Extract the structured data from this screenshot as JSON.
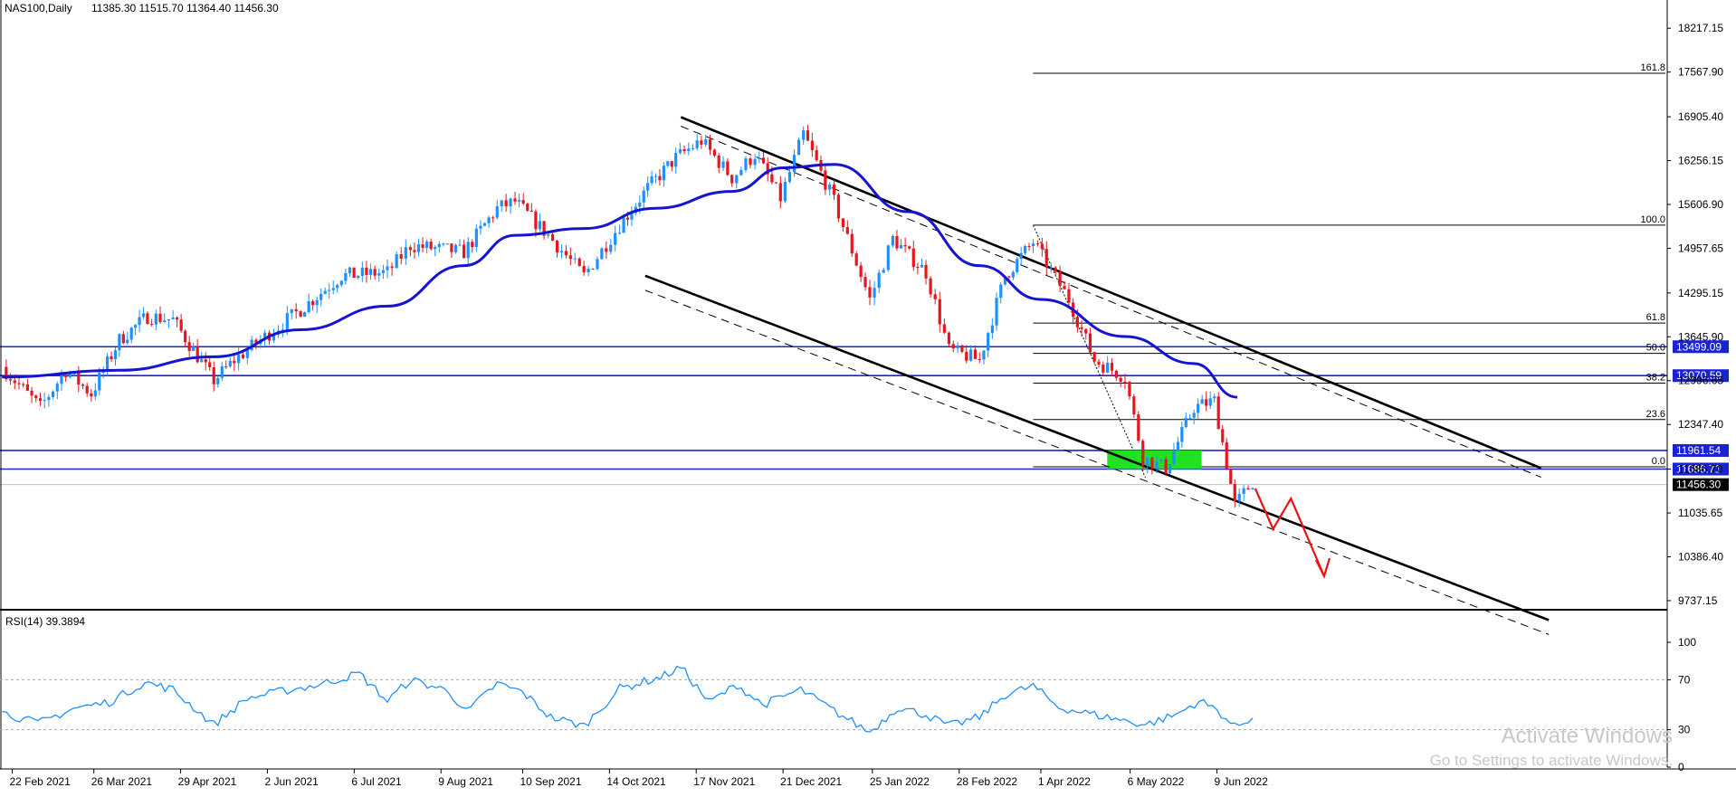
{
  "header": {
    "symbol": "NAS100,Daily",
    "ohlc": "11385.30 11515.70 11364.40 11456.30"
  },
  "watermark": {
    "title": "Activate Windows",
    "subtitle": "Go to Settings to activate Windows."
  },
  "chart_data": [
    {
      "type": "candlestick",
      "symbol": "NAS100",
      "timeframe": "Daily",
      "title": "NAS100,Daily",
      "ohlc_readout": "11385.30 11515.70 11364.40 11456.30",
      "ylim": [
        9450,
        18400
      ],
      "price_ticks": [
        18217.15,
        17567.9,
        16905.4,
        16256.15,
        15606.9,
        14957.65,
        14295.15,
        13645.9,
        12996.65,
        12347.4,
        11686.7,
        11035.65,
        10386.4,
        9737.15
      ],
      "price_tick_labels": [
        "18217.15",
        "17567.90",
        "16905.40",
        "16256.15",
        "15606.90",
        "14957.65",
        "14295.15",
        "13645.90",
        "12996.65",
        "12347.40",
        "11686.70",
        "11035.65",
        "10386.40",
        "9737.15"
      ],
      "x_tick_labels": [
        "22 Feb 2021",
        "26 Mar 2021",
        "29 Apr 2021",
        "2 Jun 2021",
        "6 Jul 2021",
        "9 Aug 2021",
        "10 Sep 2021",
        "14 Oct 2021",
        "17 Nov 2021",
        "21 Dec 2021",
        "25 Jan 2022",
        "28 Feb 2022",
        "1 Apr 2022",
        "6 May 2022",
        "9 Jun 2022"
      ],
      "last_price": 11456.3,
      "last_price_label": "11456.30",
      "price_path": [
        {
          "date": "2021-02-18",
          "close": 13200
        },
        {
          "date": "2021-03-05",
          "close": 12600
        },
        {
          "date": "2021-03-15",
          "close": 13150
        },
        {
          "date": "2021-03-25",
          "close": 12800
        },
        {
          "date": "2021-04-05",
          "close": 13600
        },
        {
          "date": "2021-04-16",
          "close": 13950
        },
        {
          "date": "2021-04-26",
          "close": 13900
        },
        {
          "date": "2021-05-12",
          "close": 13000
        },
        {
          "date": "2021-05-20",
          "close": 13300
        },
        {
          "date": "2021-06-01",
          "close": 13650
        },
        {
          "date": "2021-06-15",
          "close": 14050
        },
        {
          "date": "2021-07-01",
          "close": 14550
        },
        {
          "date": "2021-07-19",
          "close": 14600
        },
        {
          "date": "2021-07-28",
          "close": 15000
        },
        {
          "date": "2021-08-18",
          "close": 14900
        },
        {
          "date": "2021-08-31",
          "close": 15550
        },
        {
          "date": "2021-09-07",
          "close": 15650
        },
        {
          "date": "2021-09-20",
          "close": 15150
        },
        {
          "date": "2021-10-04",
          "close": 14550
        },
        {
          "date": "2021-10-18",
          "close": 15300
        },
        {
          "date": "2021-10-29",
          "close": 15850
        },
        {
          "date": "2021-11-09",
          "close": 16300
        },
        {
          "date": "2021-11-19",
          "close": 16550
        },
        {
          "date": "2021-12-01",
          "close": 16000
        },
        {
          "date": "2021-12-10",
          "close": 16350
        },
        {
          "date": "2021-12-20",
          "close": 15700
        },
        {
          "date": "2021-12-29",
          "close": 16650
        },
        {
          "date": "2022-01-10",
          "close": 15650
        },
        {
          "date": "2022-01-24",
          "close": 14200
        },
        {
          "date": "2022-02-02",
          "close": 15100
        },
        {
          "date": "2022-02-15",
          "close": 14600
        },
        {
          "date": "2022-02-24",
          "close": 13450
        },
        {
          "date": "2022-03-08",
          "close": 13300
        },
        {
          "date": "2022-03-18",
          "close": 14550
        },
        {
          "date": "2022-03-29",
          "close": 15050
        },
        {
          "date": "2022-04-12",
          "close": 14200
        },
        {
          "date": "2022-04-22",
          "close": 13300
        },
        {
          "date": "2022-05-04",
          "close": 13050
        },
        {
          "date": "2022-05-11",
          "close": 11850
        },
        {
          "date": "2022-05-20",
          "close": 11700
        },
        {
          "date": "2022-05-31",
          "close": 12600
        },
        {
          "date": "2022-06-08",
          "close": 12700
        },
        {
          "date": "2022-06-16",
          "close": 11150
        },
        {
          "date": "2022-06-23",
          "close": 11500
        }
      ],
      "moving_average": [
        {
          "date": "2021-02-18",
          "value": 13050
        },
        {
          "date": "2021-04-05",
          "value": 13150
        },
        {
          "date": "2021-05-12",
          "value": 13350
        },
        {
          "date": "2021-06-15",
          "value": 13750
        },
        {
          "date": "2021-07-19",
          "value": 14100
        },
        {
          "date": "2021-08-18",
          "value": 14700
        },
        {
          "date": "2021-09-07",
          "value": 15150
        },
        {
          "date": "2021-10-04",
          "value": 15250
        },
        {
          "date": "2021-11-01",
          "value": 15550
        },
        {
          "date": "2021-12-01",
          "value": 15800
        },
        {
          "date": "2021-12-21",
          "value": 16150
        },
        {
          "date": "2022-01-10",
          "value": 16200
        },
        {
          "date": "2022-02-08",
          "value": 15500
        },
        {
          "date": "2022-03-08",
          "value": 14700
        },
        {
          "date": "2022-04-01",
          "value": 14200
        },
        {
          "date": "2022-05-04",
          "value": 13650
        },
        {
          "date": "2022-05-31",
          "value": 13250
        },
        {
          "date": "2022-06-17",
          "value": 12750
        }
      ],
      "horizontal_levels": [
        {
          "price": 13499.09,
          "label": "13499.09"
        },
        {
          "price": 13070.59,
          "label": "13070.59"
        },
        {
          "price": 11961.54,
          "label": "11961.54"
        },
        {
          "price": 11686.71,
          "label": "11686.71"
        }
      ],
      "fibonacci": {
        "start_date": "2022-03-29",
        "end_date": "2022-05-12",
        "levels": [
          {
            "ratio": "161.8",
            "price": 17550
          },
          {
            "ratio": "100.0",
            "price": 15300
          },
          {
            "ratio": "61.8",
            "price": 13850
          },
          {
            "ratio": "50.0",
            "price": 13400
          },
          {
            "ratio": "38.2",
            "price": 12960
          },
          {
            "ratio": "23.6",
            "price": 12420
          },
          {
            "ratio": "0.0",
            "price": 11720
          }
        ]
      },
      "channel": {
        "upper": [
          {
            "date": "2021-11-11",
            "price": 16900
          },
          {
            "date": "2022-10-14",
            "price": 11700
          }
        ],
        "lower": [
          {
            "date": "2021-10-28",
            "price": 14550
          },
          {
            "date": "2022-10-17",
            "price": 9450
          }
        ]
      },
      "demand_zone": {
        "from": "2022-04-27",
        "to": "2022-06-03",
        "top": 11961.54,
        "bottom": 11686.71
      },
      "projection": [
        {
          "date": "2022-06-24",
          "price": 11400
        },
        {
          "date": "2022-07-01",
          "price": 10800
        },
        {
          "date": "2022-07-08",
          "price": 11250
        },
        {
          "date": "2022-07-21",
          "price": 10100
        }
      ]
    },
    {
      "type": "line",
      "title": "RSI(14) 39.3894",
      "ylim": [
        0,
        100
      ],
      "y_ticks": [
        0,
        30,
        70,
        100
      ],
      "guide_levels": [
        30,
        70
      ],
      "series": [
        {
          "values": [
            {
              "date": "2021-02-18",
              "value": 44
            },
            {
              "date": "2021-03-04",
              "value": 35
            },
            {
              "date": "2021-03-18",
              "value": 47
            },
            {
              "date": "2021-04-01",
              "value": 52
            },
            {
              "date": "2021-04-15",
              "value": 68
            },
            {
              "date": "2021-04-26",
              "value": 62
            },
            {
              "date": "2021-05-12",
              "value": 34
            },
            {
              "date": "2021-05-25",
              "value": 55
            },
            {
              "date": "2021-06-08",
              "value": 61
            },
            {
              "date": "2021-06-22",
              "value": 66
            },
            {
              "date": "2021-07-08",
              "value": 75
            },
            {
              "date": "2021-07-19",
              "value": 53
            },
            {
              "date": "2021-07-28",
              "value": 70
            },
            {
              "date": "2021-08-12",
              "value": 61
            },
            {
              "date": "2021-08-19",
              "value": 44
            },
            {
              "date": "2021-08-31",
              "value": 67
            },
            {
              "date": "2021-09-10",
              "value": 60
            },
            {
              "date": "2021-09-21",
              "value": 40
            },
            {
              "date": "2021-10-04",
              "value": 33
            },
            {
              "date": "2021-10-18",
              "value": 63
            },
            {
              "date": "2021-11-03",
              "value": 72
            },
            {
              "date": "2021-11-11",
              "value": 80
            },
            {
              "date": "2021-11-22",
              "value": 52
            },
            {
              "date": "2021-12-03",
              "value": 66
            },
            {
              "date": "2021-12-13",
              "value": 50
            },
            {
              "date": "2021-12-28",
              "value": 62
            },
            {
              "date": "2022-01-10",
              "value": 45
            },
            {
              "date": "2022-01-24",
              "value": 28
            },
            {
              "date": "2022-02-04",
              "value": 48
            },
            {
              "date": "2022-02-15",
              "value": 42
            },
            {
              "date": "2022-02-24",
              "value": 33
            },
            {
              "date": "2022-03-08",
              "value": 40
            },
            {
              "date": "2022-03-18",
              "value": 58
            },
            {
              "date": "2022-03-29",
              "value": 65
            },
            {
              "date": "2022-04-08",
              "value": 48
            },
            {
              "date": "2022-04-22",
              "value": 42
            },
            {
              "date": "2022-05-02",
              "value": 38
            },
            {
              "date": "2022-05-12",
              "value": 34
            },
            {
              "date": "2022-05-24",
              "value": 42
            },
            {
              "date": "2022-06-02",
              "value": 53
            },
            {
              "date": "2022-06-09",
              "value": 46
            },
            {
              "date": "2022-06-16",
              "value": 32
            },
            {
              "date": "2022-06-23",
              "value": 39.39
            }
          ]
        }
      ]
    }
  ]
}
